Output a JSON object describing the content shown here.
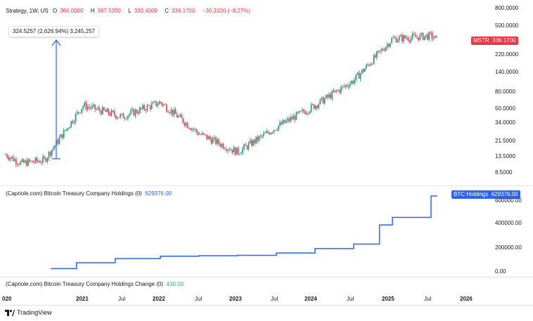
{
  "header": {
    "symbol": "Strategy, 1W, US",
    "open_label": "O",
    "open": "360.0000",
    "high_label": "H",
    "high": "367.5350",
    "low_label": "L",
    "low": "333.4000",
    "close_label": "C",
    "close": "336.1700",
    "change": "−30.3100 (−8.27%)"
  },
  "measure": {
    "text": "324.5257 (2,626.94%) 3,245,257"
  },
  "price_axis": {
    "labels": [
      "800.0000",
      "500.0000",
      "220.0000",
      "140.0000",
      "80.0000",
      "50.0000",
      "34.0000",
      "21.5000",
      "13.5000",
      "8.5000"
    ],
    "tag_symbol": "MSTR",
    "tag_value": "336.1700"
  },
  "indicator1": {
    "title": "(Capriole.com) Bitcoin Treasury Company Holdings (0)",
    "value": "629376.00",
    "tag_label": "BTC Holdings",
    "tag_value": "629376.00",
    "axis_labels": [
      "600000.00",
      "400000.00",
      "200000.00",
      "0.00"
    ]
  },
  "indicator2": {
    "title": "(Capriole.com) Bitcoin Treasury Company Holdings Change (0)",
    "value": "430.00"
  },
  "time_axis": {
    "labels": [
      "020",
      "2021",
      "Jul",
      "2022",
      "Jul",
      "2023",
      "Jul",
      "2024",
      "Jul",
      "2025",
      "Jul",
      "2026"
    ]
  },
  "branding": {
    "name": "TradingView"
  },
  "colors": {
    "up": "#089981",
    "down": "#f23645",
    "line": "#2962ff",
    "measure": "#2962ff"
  },
  "chart_data": [
    {
      "type": "candlestick",
      "title": "Strategy, 1W, US",
      "yscale": "log",
      "ylim": [
        6,
        900
      ],
      "x": [
        "2020-07",
        "2021-01",
        "2021-07",
        "2022-01",
        "2022-07",
        "2023-01",
        "2023-07",
        "2024-01",
        "2024-07",
        "2025-01",
        "2025-07"
      ],
      "values": [
        12,
        55,
        40,
        60,
        25,
        15,
        30,
        55,
        110,
        350,
        380
      ],
      "last_close": 336.17
    },
    {
      "type": "line",
      "title": "(Capriole.com) Bitcoin Treasury Company Holdings (0)",
      "x": [
        "2020-08",
        "2020-12",
        "2021-06",
        "2022-01",
        "2022-07",
        "2023-01",
        "2023-07",
        "2024-01",
        "2024-07",
        "2024-11",
        "2025-01",
        "2025-07"
      ],
      "values": [
        21454,
        70470,
        105085,
        125051,
        129699,
        132500,
        152333,
        189150,
        226500,
        386700,
        450000,
        629376
      ],
      "ylim": [
        0,
        650000
      ]
    }
  ]
}
